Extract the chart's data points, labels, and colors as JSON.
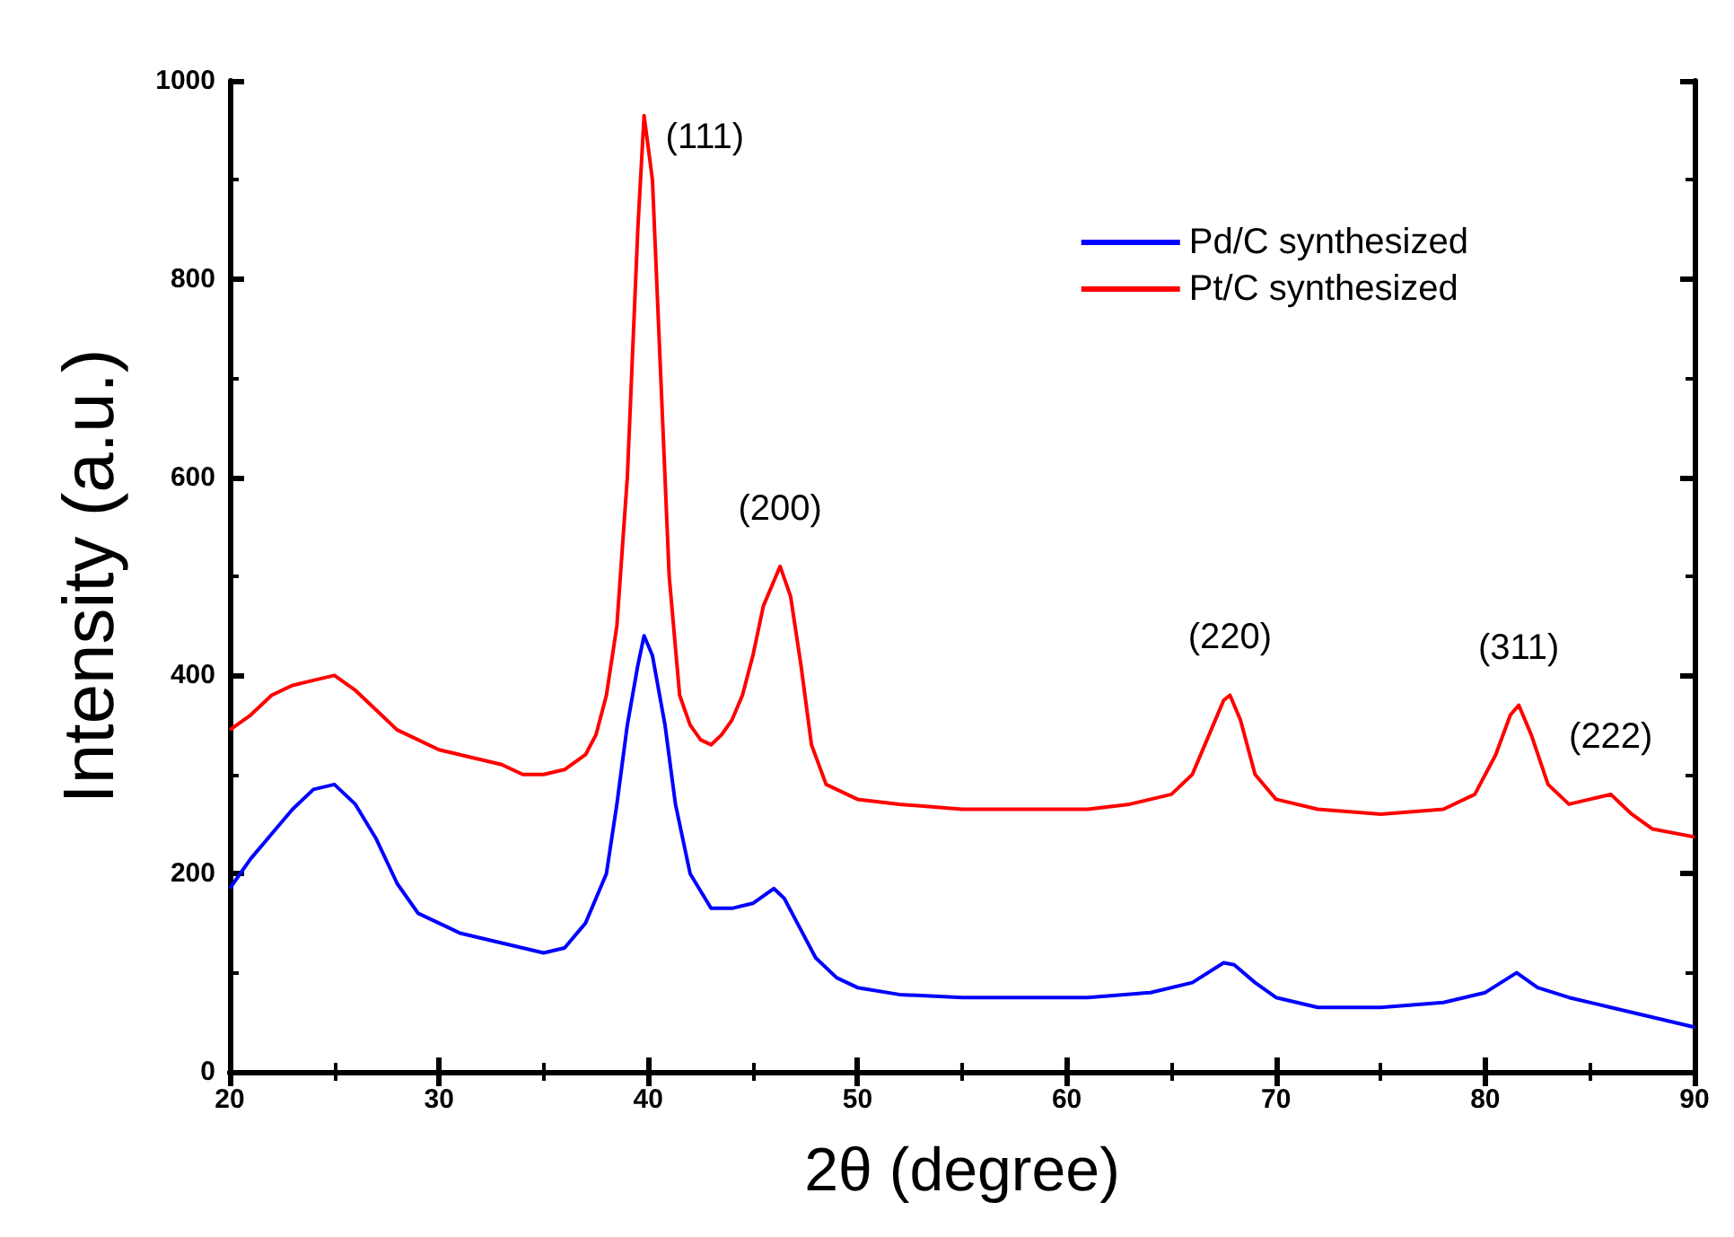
{
  "chart_data": {
    "type": "line",
    "xlabel": "2θ (degree)",
    "ylabel": "Intensity (a.u.)",
    "xlim": [
      20,
      90
    ],
    "xticks": [
      20,
      30,
      40,
      50,
      60,
      70,
      80,
      90
    ],
    "ylim": [
      0,
      1000
    ],
    "yticks": [
      0,
      200,
      400,
      600,
      800,
      1000
    ],
    "grid": false,
    "legend": "top right",
    "marker": "none",
    "line_style": "solid",
    "series": [
      {
        "name": "Pd/C synthesized",
        "color": "#0000ff",
        "x": [
          20,
          21,
          22,
          23,
          24,
          25,
          26,
          27,
          28,
          29,
          30,
          31,
          32,
          33,
          34,
          35,
          36,
          37,
          38,
          38.5,
          39,
          39.5,
          39.8,
          40.2,
          40.8,
          41.3,
          42,
          43,
          44,
          45,
          46,
          46.5,
          47,
          48,
          49,
          50,
          52,
          55,
          58,
          61,
          64,
          66,
          67.5,
          68,
          69,
          70,
          72,
          75,
          78,
          80,
          81.5,
          82.5,
          84,
          86,
          88,
          90
        ],
        "values": [
          185,
          215,
          240,
          265,
          285,
          290,
          270,
          235,
          190,
          160,
          150,
          140,
          135,
          130,
          125,
          120,
          125,
          150,
          200,
          270,
          350,
          410,
          440,
          420,
          350,
          270,
          200,
          165,
          165,
          170,
          185,
          175,
          155,
          115,
          95,
          85,
          78,
          75,
          75,
          75,
          80,
          90,
          110,
          108,
          90,
          75,
          65,
          65,
          70,
          80,
          100,
          85,
          75,
          65,
          55,
          45
        ]
      },
      {
        "name": "Pt/C synthesized",
        "color": "#ff0000",
        "x": [
          20,
          21,
          22,
          23,
          24,
          25,
          26,
          27,
          28,
          29,
          30,
          31,
          32,
          33,
          34,
          35,
          36,
          37,
          37.5,
          38,
          38.5,
          39,
          39.5,
          39.8,
          40.2,
          40.6,
          41,
          41.5,
          42,
          42.5,
          43,
          43.5,
          44,
          44.5,
          45,
          45.5,
          46,
          46.3,
          46.8,
          47.3,
          47.8,
          48.5,
          50,
          52,
          55,
          58,
          61,
          63,
          65,
          66,
          66.8,
          67.5,
          67.8,
          68.3,
          69,
          70,
          72,
          75,
          78,
          79.5,
          80.5,
          81.2,
          81.6,
          82.2,
          83,
          84,
          85,
          86,
          87,
          88,
          90
        ],
        "values": [
          345,
          360,
          380,
          390,
          395,
          400,
          385,
          365,
          345,
          335,
          325,
          320,
          315,
          310,
          300,
          300,
          305,
          320,
          340,
          380,
          450,
          600,
          850,
          965,
          900,
          700,
          500,
          380,
          350,
          335,
          330,
          340,
          355,
          380,
          420,
          470,
          495,
          510,
          480,
          410,
          330,
          290,
          275,
          270,
          265,
          265,
          265,
          270,
          280,
          300,
          340,
          375,
          380,
          355,
          300,
          275,
          265,
          260,
          265,
          280,
          320,
          360,
          370,
          340,
          290,
          270,
          275,
          280,
          260,
          245,
          237
        ]
      }
    ],
    "annotations": [
      {
        "text": "(111)",
        "x": 39.8,
        "y": 965
      },
      {
        "text": "(200)",
        "x": 46.3,
        "y": 510
      },
      {
        "text": "(220)",
        "x": 67.8,
        "y": 380
      },
      {
        "text": "(311)",
        "x": 81.6,
        "y": 370
      },
      {
        "text": "(222)",
        "x": 86,
        "y": 280
      }
    ]
  }
}
